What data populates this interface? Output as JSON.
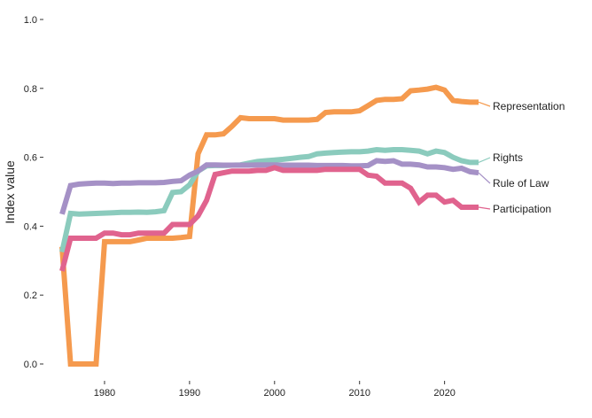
{
  "chart_data": {
    "type": "line",
    "title": "",
    "xlabel": "",
    "ylabel": "Index value",
    "xlim": [
      1975,
      2024
    ],
    "ylim": [
      0,
      1
    ],
    "x_ticks": [
      1980,
      1990,
      2000,
      2010,
      2020
    ],
    "y_ticks": [
      "0.0",
      "0.2",
      "0.4",
      "0.6",
      "0.8",
      "1.0"
    ],
    "grid": false,
    "legend": "direct labels at right end of lines",
    "x": [
      1975,
      1976,
      1977,
      1978,
      1979,
      1980,
      1981,
      1982,
      1983,
      1984,
      1985,
      1986,
      1987,
      1988,
      1989,
      1990,
      1991,
      1992,
      1993,
      1994,
      1995,
      1996,
      1997,
      1998,
      1999,
      2000,
      2001,
      2002,
      2003,
      2004,
      2005,
      2006,
      2007,
      2008,
      2009,
      2010,
      2011,
      2012,
      2013,
      2014,
      2015,
      2016,
      2017,
      2018,
      2019,
      2020,
      2021,
      2022,
      2023,
      2024
    ],
    "series": [
      {
        "name": "Representation",
        "color": "#f59a4e",
        "values": [
          0.34,
          0.0,
          0.0,
          0.0,
          0.0,
          0.355,
          0.355,
          0.355,
          0.355,
          0.36,
          0.365,
          0.365,
          0.365,
          0.365,
          0.367,
          0.37,
          0.61,
          0.665,
          0.665,
          0.668,
          0.69,
          0.715,
          0.712,
          0.712,
          0.712,
          0.712,
          0.708,
          0.708,
          0.708,
          0.708,
          0.71,
          0.73,
          0.732,
          0.732,
          0.732,
          0.735,
          0.75,
          0.765,
          0.768,
          0.768,
          0.77,
          0.793,
          0.795,
          0.798,
          0.803,
          0.795,
          0.765,
          0.762,
          0.76,
          0.76
        ]
      },
      {
        "name": "Rights",
        "color": "#8bcbbd",
        "values": [
          0.325,
          0.437,
          0.435,
          0.436,
          0.437,
          0.438,
          0.439,
          0.44,
          0.44,
          0.441,
          0.44,
          0.442,
          0.445,
          0.498,
          0.5,
          0.52,
          0.56,
          0.575,
          0.576,
          0.576,
          0.577,
          0.578,
          0.583,
          0.588,
          0.59,
          0.592,
          0.594,
          0.597,
          0.6,
          0.602,
          0.61,
          0.612,
          0.614,
          0.615,
          0.616,
          0.616,
          0.618,
          0.622,
          0.62,
          0.622,
          0.622,
          0.62,
          0.618,
          0.61,
          0.618,
          0.614,
          0.6,
          0.59,
          0.585,
          0.585
        ]
      },
      {
        "name": "Rule of Law",
        "color": "#a591c6",
        "values": [
          0.435,
          0.518,
          0.522,
          0.524,
          0.525,
          0.525,
          0.524,
          0.525,
          0.525,
          0.526,
          0.526,
          0.526,
          0.527,
          0.53,
          0.532,
          0.548,
          0.56,
          0.578,
          0.578,
          0.577,
          0.577,
          0.577,
          0.577,
          0.578,
          0.578,
          0.578,
          0.577,
          0.577,
          0.577,
          0.577,
          0.576,
          0.576,
          0.576,
          0.576,
          0.575,
          0.575,
          0.576,
          0.59,
          0.588,
          0.59,
          0.58,
          0.58,
          0.578,
          0.572,
          0.572,
          0.57,
          0.565,
          0.568,
          0.558,
          0.555
        ]
      },
      {
        "name": "Participation",
        "color": "#e0638e",
        "values": [
          0.27,
          0.365,
          0.365,
          0.365,
          0.365,
          0.38,
          0.38,
          0.375,
          0.375,
          0.38,
          0.38,
          0.38,
          0.38,
          0.405,
          0.405,
          0.405,
          0.43,
          0.475,
          0.55,
          0.555,
          0.56,
          0.56,
          0.56,
          0.562,
          0.562,
          0.57,
          0.562,
          0.562,
          0.562,
          0.562,
          0.562,
          0.565,
          0.565,
          0.565,
          0.565,
          0.565,
          0.548,
          0.545,
          0.525,
          0.525,
          0.525,
          0.51,
          0.47,
          0.49,
          0.49,
          0.47,
          0.475,
          0.455,
          0.455,
          0.455
        ]
      }
    ]
  }
}
